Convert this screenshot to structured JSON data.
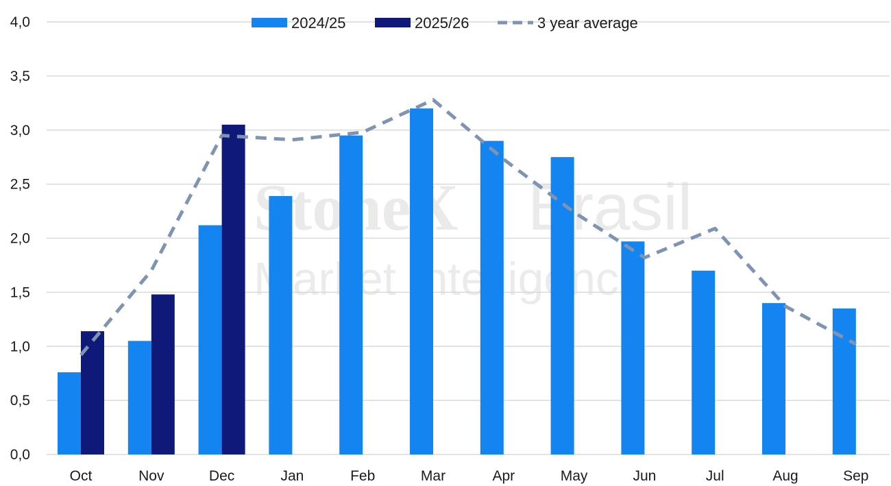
{
  "watermark": {
    "brand": "StoneX",
    "region": "Brasil",
    "tagline": "Market Intelligence"
  },
  "colors": {
    "series_2024": "#1384f0",
    "series_2025": "#0f1a78",
    "average": "#7f94b3",
    "grid": "#d9d9d9"
  },
  "chart_data": {
    "type": "bar",
    "categories": [
      "Oct",
      "Nov",
      "Dec",
      "Jan",
      "Feb",
      "Mar",
      "Apr",
      "May",
      "Jun",
      "Jul",
      "Aug",
      "Sep"
    ],
    "series": [
      {
        "name": "2024/25",
        "type": "bar",
        "values": [
          0.76,
          1.05,
          2.12,
          2.39,
          2.95,
          3.2,
          2.9,
          2.75,
          1.97,
          1.7,
          1.4,
          1.35
        ]
      },
      {
        "name": "2025/26",
        "type": "bar",
        "values": [
          1.14,
          1.48,
          3.05,
          null,
          null,
          null,
          null,
          null,
          null,
          null,
          null,
          null
        ]
      },
      {
        "name": "3 year average",
        "type": "line",
        "style": "dashed",
        "values": [
          0.92,
          1.7,
          2.95,
          2.91,
          2.98,
          3.28,
          2.73,
          2.24,
          1.82,
          2.09,
          1.37,
          1.02
        ]
      }
    ],
    "yticks": [
      "0,0",
      "0,5",
      "1,0",
      "1,5",
      "2,0",
      "2,5",
      "3,0",
      "3,5",
      "4,0"
    ],
    "ylim": [
      0,
      4
    ],
    "grid": true,
    "legend_position": "top-center"
  }
}
